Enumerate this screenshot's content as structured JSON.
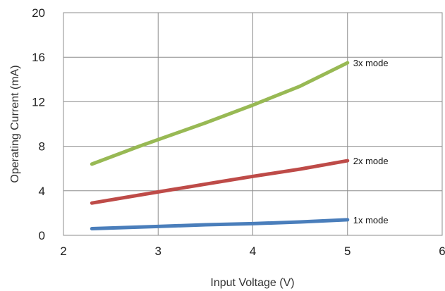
{
  "chart_data": {
    "type": "line",
    "title": "",
    "xlabel": "Input Voltage (V)",
    "ylabel": "Operating Current (mA)",
    "xlim": [
      2,
      6
    ],
    "ylim": [
      0,
      20
    ],
    "x_ticks": [
      2,
      3,
      4,
      5,
      6
    ],
    "y_ticks": [
      0,
      4,
      8,
      12,
      16,
      20
    ],
    "grid": true,
    "legend": "none",
    "series": [
      {
        "name": "1x mode",
        "color": "#4a7ebb",
        "x": [
          2.3,
          3.0,
          3.5,
          4.0,
          4.5,
          5.0
        ],
        "y": [
          0.6,
          0.8,
          0.95,
          1.05,
          1.2,
          1.4
        ]
      },
      {
        "name": "2x mode",
        "color": "#be4b48",
        "x": [
          2.3,
          3.0,
          3.5,
          4.0,
          4.5,
          5.0
        ],
        "y": [
          2.9,
          3.9,
          4.6,
          5.3,
          5.95,
          6.7
        ]
      },
      {
        "name": "3x mode",
        "color": "#98b954",
        "x": [
          2.3,
          2.8,
          3.0,
          3.5,
          4.0,
          4.5,
          5.0
        ],
        "y": [
          6.4,
          8.0,
          8.6,
          10.1,
          11.7,
          13.4,
          15.5
        ]
      }
    ]
  }
}
